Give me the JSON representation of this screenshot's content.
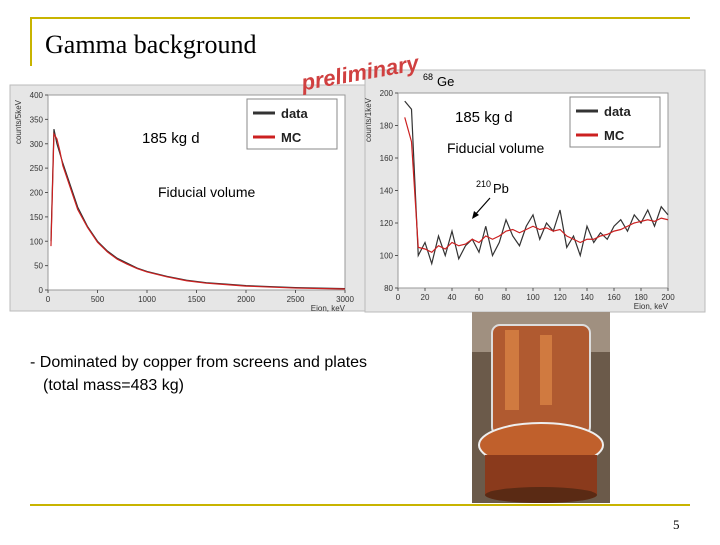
{
  "title": "Gamma background",
  "watermark": "preliminary",
  "bullet": {
    "line1": "- Dominated by copper from screens and plates",
    "line2": "(total mass=483 kg)"
  },
  "page_number": "5",
  "annotations": {
    "exposure_left": "185 kg d",
    "volume_left": "Fiducial volume",
    "ge_mass": "68",
    "ge_symbol": "Ge",
    "exposure_right": "185 kg d",
    "volume_right": "Fiducial volume",
    "pb_mass": "210",
    "pb_symbol": "Pb"
  },
  "chart_data": [
    {
      "type": "line",
      "x_label": "Eion, keV",
      "y_label": "counts/5keV",
      "xlim": [
        0,
        3000
      ],
      "xticks": [
        0,
        500,
        1000,
        1500,
        2000,
        2500,
        3000
      ],
      "ylim": [
        0,
        400
      ],
      "yticks": [
        0,
        50,
        100,
        150,
        200,
        250,
        300,
        350,
        400
      ],
      "legend": "upper right",
      "x": [
        30,
        60,
        90,
        120,
        150,
        200,
        250,
        300,
        400,
        500,
        600,
        700,
        800,
        900,
        1000,
        1200,
        1400,
        1600,
        1800,
        2000,
        2500,
        3000
      ],
      "series": [
        {
          "name": "data",
          "color": "#333333",
          "values": [
            100,
            330,
            300,
            280,
            260,
            230,
            200,
            170,
            130,
            100,
            80,
            65,
            55,
            45,
            38,
            28,
            20,
            15,
            12,
            9,
            5,
            3
          ]
        },
        {
          "name": "MC",
          "color": "#cc2020",
          "values": [
            90,
            320,
            310,
            285,
            255,
            225,
            195,
            165,
            128,
            98,
            78,
            63,
            53,
            44,
            37,
            27,
            19,
            14,
            11,
            8,
            4,
            2
          ]
        }
      ]
    },
    {
      "type": "line",
      "x_label": "Eion, keV",
      "y_label": "counts/1keV",
      "xlim": [
        0,
        200
      ],
      "xticks": [
        0,
        20,
        40,
        60,
        80,
        100,
        120,
        140,
        160,
        180,
        200
      ],
      "ylim": [
        80,
        200
      ],
      "yticks": [
        80,
        100,
        120,
        140,
        160,
        180,
        200
      ],
      "legend": "upper right",
      "x": [
        5,
        10,
        15,
        20,
        25,
        30,
        35,
        40,
        45,
        50,
        55,
        60,
        65,
        70,
        75,
        80,
        85,
        90,
        95,
        100,
        105,
        110,
        115,
        120,
        125,
        130,
        135,
        140,
        145,
        150,
        155,
        160,
        165,
        170,
        175,
        180,
        185,
        190,
        195,
        200
      ],
      "series": [
        {
          "name": "data",
          "color": "#333333",
          "values": [
            195,
            190,
            100,
            108,
            95,
            112,
            100,
            115,
            98,
            106,
            110,
            102,
            118,
            100,
            108,
            122,
            112,
            106,
            118,
            125,
            110,
            120,
            115,
            128,
            105,
            112,
            100,
            118,
            108,
            114,
            110,
            118,
            122,
            115,
            125,
            120,
            128,
            118,
            130,
            125
          ]
        },
        {
          "name": "MC",
          "color": "#cc2020",
          "values": [
            185,
            170,
            105,
            104,
            102,
            106,
            104,
            108,
            106,
            107,
            110,
            108,
            112,
            110,
            112,
            115,
            116,
            114,
            116,
            118,
            116,
            117,
            115,
            116,
            112,
            110,
            108,
            110,
            110,
            112,
            113,
            115,
            116,
            118,
            120,
            121,
            122,
            121,
            123,
            122
          ]
        }
      ]
    }
  ]
}
